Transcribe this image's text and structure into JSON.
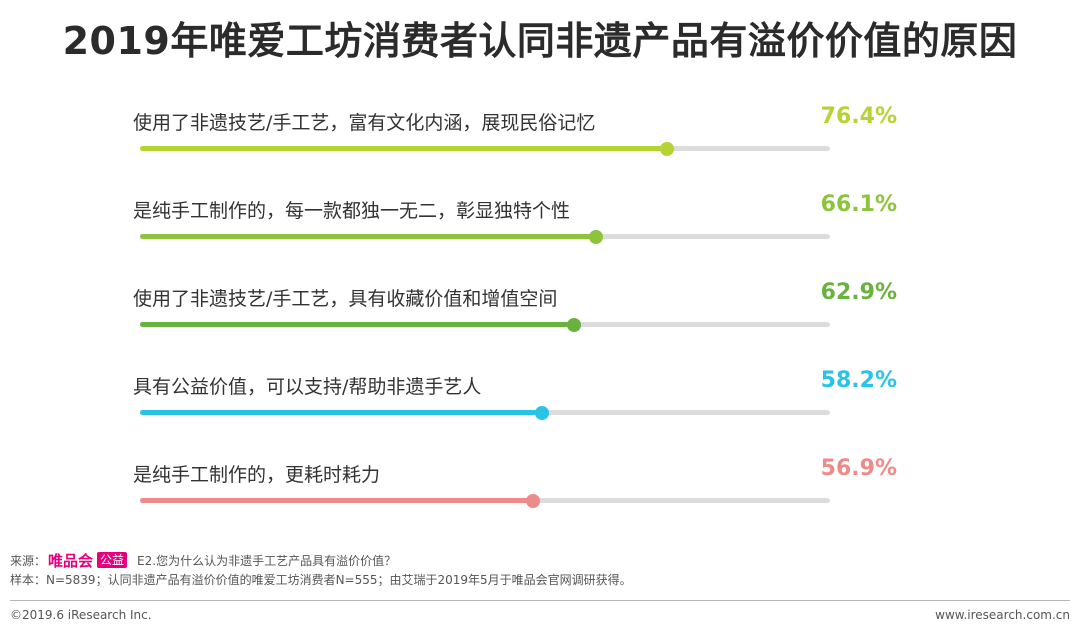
{
  "title": "2019年唯爱工坊消费者认同非遗产品有溢价价值的原因",
  "chart_data": {
    "type": "bar",
    "orientation": "horizontal",
    "title": "2019年唯爱工坊消费者认同非遗产品有溢价价值的原因",
    "xlim": [
      0,
      100
    ],
    "unit": "%",
    "categories": [
      "使用了非遗技艺/手工艺，富有文化内涵，展现民俗记忆",
      "是纯手工制作的，每一款都独一无二，彰显独特个性",
      "使用了非遗技艺/手工艺，具有收藏价值和增值空间",
      "具有公益价值，可以支持/帮助非遗手艺人",
      "是纯手工制作的，更耗时耗力"
    ],
    "values": [
      76.4,
      66.1,
      62.9,
      58.2,
      56.9
    ],
    "value_labels": [
      "76.4%",
      "66.1%",
      "62.9%",
      "58.2%",
      "56.9%"
    ],
    "colors": [
      "#b5d334",
      "#8cc43c",
      "#6ab23e",
      "#29c3e8",
      "#ef8a8a"
    ]
  },
  "footer": {
    "source_label": "来源：",
    "logo_text": "唯品会",
    "logo_badge": "公益",
    "question": "E2.您为什么认为非遗手工艺产品具有溢价价值？",
    "sample": "样本：N=5839；认同非遗产品有溢价价值的唯爱工坊消费者N=555；由艾瑞于2019年5月于唯品会官网调研获得。",
    "copyright": "©2019.6 iResearch Inc.",
    "website": "www.iresearch.com.cn"
  }
}
